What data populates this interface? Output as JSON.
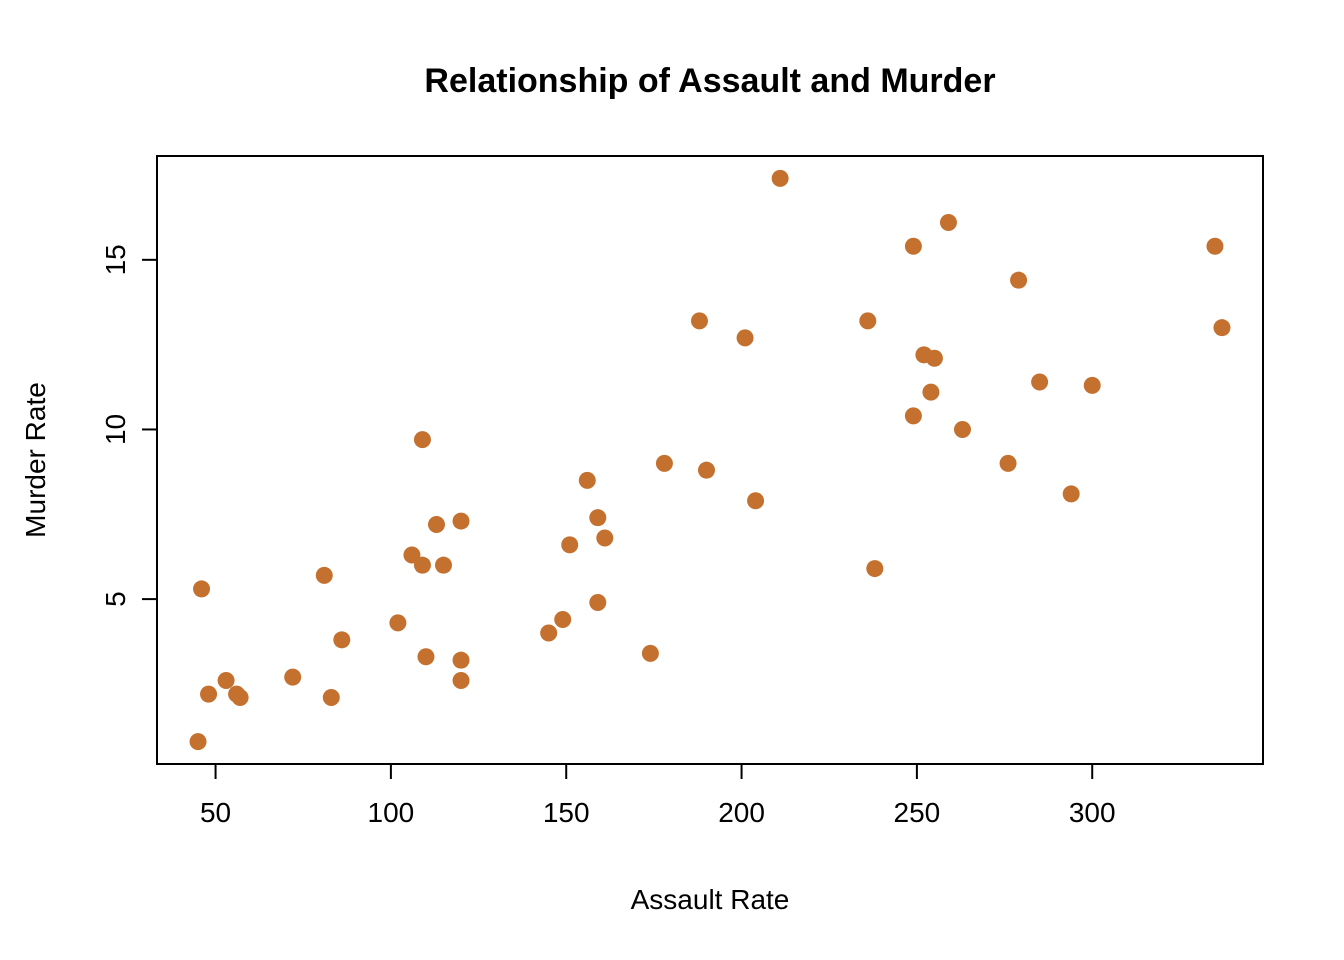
{
  "page": {
    "background_color": "#FFFFFF"
  },
  "chart_data": {
    "type": "scatter",
    "title": "Relationship of Assault and Murder",
    "xlabel": "Assault Rate",
    "ylabel": "Murder Rate",
    "x_ticks": [
      50,
      100,
      150,
      200,
      250,
      300
    ],
    "y_ticks": [
      5,
      10,
      15
    ],
    "xlim": [
      33.3,
      348.7
    ],
    "ylim": [
      0.14,
      18.06
    ],
    "grid": false,
    "legend_position": "none",
    "point_color": "#C4712F",
    "axis_color": "#000000",
    "points": [
      [
        236,
        13.2
      ],
      [
        263,
        10.0
      ],
      [
        294,
        8.1
      ],
      [
        190,
        8.8
      ],
      [
        276,
        9.0
      ],
      [
        204,
        7.9
      ],
      [
        110,
        3.3
      ],
      [
        238,
        5.9
      ],
      [
        335,
        15.4
      ],
      [
        211,
        17.4
      ],
      [
        46,
        5.3
      ],
      [
        120,
        2.6
      ],
      [
        249,
        10.4
      ],
      [
        113,
        7.2
      ],
      [
        56,
        2.2
      ],
      [
        115,
        6.0
      ],
      [
        109,
        9.7
      ],
      [
        249,
        15.4
      ],
      [
        83,
        2.1
      ],
      [
        300,
        11.3
      ],
      [
        149,
        4.4
      ],
      [
        255,
        12.1
      ],
      [
        72,
        2.7
      ],
      [
        259,
        16.1
      ],
      [
        178,
        9.0
      ],
      [
        109,
        6.0
      ],
      [
        102,
        4.3
      ],
      [
        252,
        12.2
      ],
      [
        57,
        2.1
      ],
      [
        159,
        7.4
      ],
      [
        285,
        11.4
      ],
      [
        254,
        11.1
      ],
      [
        337,
        13.0
      ],
      [
        45,
        0.8
      ],
      [
        120,
        7.3
      ],
      [
        151,
        6.6
      ],
      [
        159,
        4.9
      ],
      [
        106,
        6.3
      ],
      [
        174,
        3.4
      ],
      [
        279,
        14.4
      ],
      [
        86,
        3.8
      ],
      [
        188,
        13.2
      ],
      [
        201,
        12.7
      ],
      [
        120,
        3.2
      ],
      [
        48,
        2.2
      ],
      [
        156,
        8.5
      ],
      [
        145,
        4.0
      ],
      [
        81,
        5.7
      ],
      [
        53,
        2.6
      ],
      [
        161,
        6.8
      ]
    ]
  }
}
